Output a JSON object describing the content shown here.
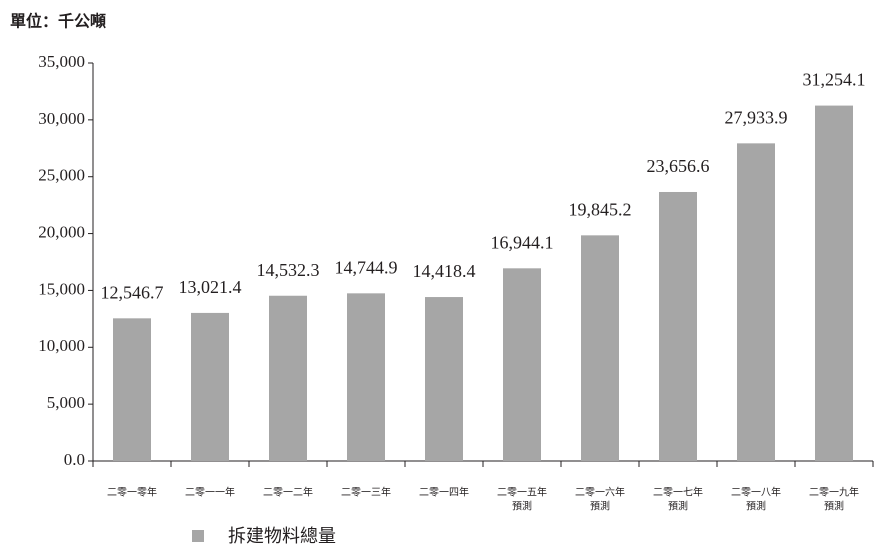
{
  "chart_data": {
    "type": "bar",
    "title": "單位：千公噸",
    "categories": [
      [
        "二零一零年"
      ],
      [
        "二零一一年"
      ],
      [
        "二零一二年"
      ],
      [
        "二零一三年"
      ],
      [
        "二零一四年"
      ],
      [
        "二零一五年",
        "預測"
      ],
      [
        "二零一六年",
        "預測"
      ],
      [
        "二零一七年",
        "預測"
      ],
      [
        "二零一八年",
        "預測"
      ],
      [
        "二零一九年",
        "預測"
      ]
    ],
    "series": [
      {
        "name": "拆建物料總量",
        "color": "#a6a6a6",
        "values": [
          12546.7,
          13021.4,
          14532.3,
          14744.9,
          14418.4,
          16944.1,
          19845.2,
          23656.6,
          27933.9,
          31254.1
        ],
        "value_labels": [
          "12,546.7",
          "13,021.4",
          "14,532.3",
          "14,744.9",
          "14,418.4",
          "16,944.1",
          "19,845.2",
          "23,656.6",
          "27,933.9",
          "31,254.1"
        ]
      }
    ],
    "ylim": [
      0,
      35000
    ],
    "yticks": [
      {
        "value": 0,
        "label": "0.0"
      },
      {
        "value": 5000,
        "label": "5,000"
      },
      {
        "value": 10000,
        "label": "10,000"
      },
      {
        "value": 15000,
        "label": "15,000"
      },
      {
        "value": 20000,
        "label": "20,000"
      },
      {
        "value": 25000,
        "label": "25,000"
      },
      {
        "value": 30000,
        "label": "30,000"
      },
      {
        "value": 35000,
        "label": "35,000"
      }
    ],
    "legend": "bottom"
  }
}
